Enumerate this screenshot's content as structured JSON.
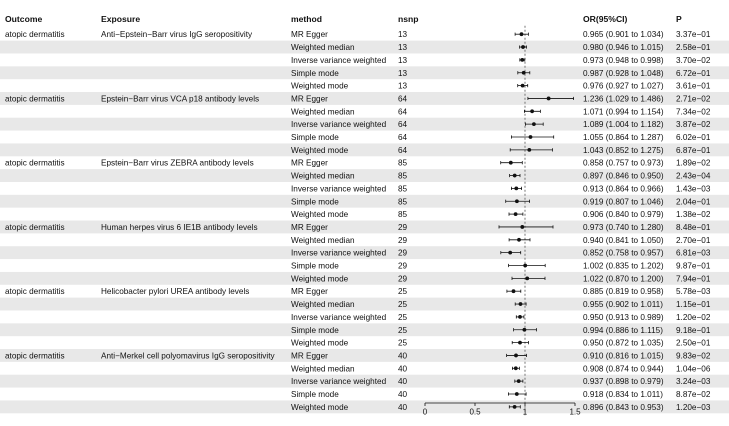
{
  "chart_data": {
    "type": "forest",
    "title": "",
    "columns": {
      "outcome": "Outcome",
      "exposure": "Exposure",
      "method": "method",
      "nsnp": "nsnp",
      "or": "OR(95%CI)",
      "p": "P"
    },
    "xaxis": {
      "ticks": [
        "0",
        "0.5",
        "1",
        "1.5"
      ],
      "tick_values": [
        0,
        0.5,
        1,
        1.5
      ],
      "range": [
        0,
        1.5
      ],
      "reference_line": 1,
      "label": ""
    },
    "colors": {
      "shade": "#e8e8e8",
      "point": "#111111",
      "ci": "#111111",
      "ref": "#555555"
    },
    "groups": [
      {
        "outcome": "atopic dermatitis",
        "exposure": "Anti−Epstein−Barr virus IgG seropositivity",
        "rows": [
          {
            "method": "MR Egger",
            "nsnp": "13",
            "or": 0.965,
            "lo": 0.901,
            "hi": 1.034,
            "or_text": "0.965 (0.901 to 1.034)",
            "p": "3.37e−01"
          },
          {
            "method": "Weighted median",
            "nsnp": "13",
            "or": 0.98,
            "lo": 0.946,
            "hi": 1.015,
            "or_text": "0.980 (0.946 to 1.015)",
            "p": "2.58e−01"
          },
          {
            "method": "Inverse variance weighted",
            "nsnp": "13",
            "or": 0.973,
            "lo": 0.948,
            "hi": 0.998,
            "or_text": "0.973 (0.948 to 0.998)",
            "p": "3.70e−02"
          },
          {
            "method": "Simple mode",
            "nsnp": "13",
            "or": 0.987,
            "lo": 0.928,
            "hi": 1.048,
            "or_text": "0.987 (0.928 to 1.048)",
            "p": "6.72e−01"
          },
          {
            "method": "Weighted mode",
            "nsnp": "13",
            "or": 0.976,
            "lo": 0.927,
            "hi": 1.027,
            "or_text": "0.976 (0.927 to 1.027)",
            "p": "3.61e−01"
          }
        ]
      },
      {
        "outcome": "atopic dermatitis",
        "exposure": "Epstein−Barr virus VCA p18 antibody levels",
        "rows": [
          {
            "method": "MR Egger",
            "nsnp": "64",
            "or": 1.236,
            "lo": 1.029,
            "hi": 1.486,
            "or_text": "1.236 (1.029 to 1.486)",
            "p": "2.71e−02"
          },
          {
            "method": "Weighted median",
            "nsnp": "64",
            "or": 1.071,
            "lo": 0.994,
            "hi": 1.154,
            "or_text": "1.071 (0.994 to 1.154)",
            "p": "7.34e−02"
          },
          {
            "method": "Inverse variance weighted",
            "nsnp": "64",
            "or": 1.089,
            "lo": 1.004,
            "hi": 1.182,
            "or_text": "1.089 (1.004 to 1.182)",
            "p": "3.87e−02"
          },
          {
            "method": "Simple mode",
            "nsnp": "64",
            "or": 1.055,
            "lo": 0.864,
            "hi": 1.287,
            "or_text": "1.055 (0.864 to 1.287)",
            "p": "6.02e−01"
          },
          {
            "method": "Weighted mode",
            "nsnp": "64",
            "or": 1.043,
            "lo": 0.852,
            "hi": 1.275,
            "or_text": "1.043 (0.852 to 1.275)",
            "p": "6.87e−01"
          }
        ]
      },
      {
        "outcome": "atopic dermatitis",
        "exposure": "Epstein−Barr virus ZEBRA antibody levels",
        "rows": [
          {
            "method": "MR Egger",
            "nsnp": "85",
            "or": 0.858,
            "lo": 0.757,
            "hi": 0.973,
            "or_text": "0.858 (0.757 to 0.973)",
            "p": "1.89e−02"
          },
          {
            "method": "Weighted median",
            "nsnp": "85",
            "or": 0.897,
            "lo": 0.846,
            "hi": 0.95,
            "or_text": "0.897 (0.846 to 0.950)",
            "p": "2.43e−04"
          },
          {
            "method": "Inverse variance weighted",
            "nsnp": "85",
            "or": 0.913,
            "lo": 0.864,
            "hi": 0.966,
            "or_text": "0.913 (0.864 to 0.966)",
            "p": "1.43e−03"
          },
          {
            "method": "Simple mode",
            "nsnp": "85",
            "or": 0.919,
            "lo": 0.807,
            "hi": 1.046,
            "or_text": "0.919 (0.807 to 1.046)",
            "p": "2.04e−01"
          },
          {
            "method": "Weighted mode",
            "nsnp": "85",
            "or": 0.906,
            "lo": 0.84,
            "hi": 0.979,
            "or_text": "0.906 (0.840 to 0.979)",
            "p": "1.38e−02"
          }
        ]
      },
      {
        "outcome": "atopic dermatitis",
        "exposure": "Human herpes virus 6 IE1B antibody levels",
        "rows": [
          {
            "method": "MR Egger",
            "nsnp": "29",
            "or": 0.973,
            "lo": 0.74,
            "hi": 1.28,
            "or_text": "0.973 (0.740 to 1.280)",
            "p": "8.48e−01"
          },
          {
            "method": "Weighted median",
            "nsnp": "29",
            "or": 0.94,
            "lo": 0.841,
            "hi": 1.05,
            "or_text": "0.940 (0.841 to 1.050)",
            "p": "2.70e−01"
          },
          {
            "method": "Inverse variance weighted",
            "nsnp": "29",
            "or": 0.852,
            "lo": 0.758,
            "hi": 0.957,
            "or_text": "0.852 (0.758 to 0.957)",
            "p": "6.81e−03"
          },
          {
            "method": "Simple mode",
            "nsnp": "29",
            "or": 1.002,
            "lo": 0.835,
            "hi": 1.202,
            "or_text": "1.002 (0.835 to 1.202)",
            "p": "9.87e−01"
          },
          {
            "method": "Weighted mode",
            "nsnp": "29",
            "or": 1.022,
            "lo": 0.87,
            "hi": 1.2,
            "or_text": "1.022 (0.870 to 1.200)",
            "p": "7.94e−01"
          }
        ]
      },
      {
        "outcome": "atopic dermatitis",
        "exposure": "Helicobacter pylori UREA antibody levels",
        "rows": [
          {
            "method": "MR Egger",
            "nsnp": "25",
            "or": 0.885,
            "lo": 0.819,
            "hi": 0.958,
            "or_text": "0.885 (0.819 to 0.958)",
            "p": "5.78e−03"
          },
          {
            "method": "Weighted median",
            "nsnp": "25",
            "or": 0.955,
            "lo": 0.902,
            "hi": 1.011,
            "or_text": "0.955 (0.902 to 1.011)",
            "p": "1.15e−01"
          },
          {
            "method": "Inverse variance weighted",
            "nsnp": "25",
            "or": 0.95,
            "lo": 0.913,
            "hi": 0.989,
            "or_text": "0.950 (0.913 to 0.989)",
            "p": "1.20e−02"
          },
          {
            "method": "Simple mode",
            "nsnp": "25",
            "or": 0.994,
            "lo": 0.886,
            "hi": 1.115,
            "or_text": "0.994 (0.886 to 1.115)",
            "p": "9.18e−01"
          },
          {
            "method": "Weighted mode",
            "nsnp": "25",
            "or": 0.95,
            "lo": 0.872,
            "hi": 1.035,
            "or_text": "0.950 (0.872 to 1.035)",
            "p": "2.50e−01"
          }
        ]
      },
      {
        "outcome": "atopic dermatitis",
        "exposure": "Anti−Merkel cell polyomavirus IgG seropositivity",
        "rows": [
          {
            "method": "MR Egger",
            "nsnp": "40",
            "or": 0.91,
            "lo": 0.816,
            "hi": 1.015,
            "or_text": "0.910 (0.816 to 1.015)",
            "p": "9.83e−02"
          },
          {
            "method": "Weighted median",
            "nsnp": "40",
            "or": 0.908,
            "lo": 0.874,
            "hi": 0.944,
            "or_text": "0.908 (0.874 to 0.944)",
            "p": "1.04e−06"
          },
          {
            "method": "Inverse variance weighted",
            "nsnp": "40",
            "or": 0.937,
            "lo": 0.898,
            "hi": 0.979,
            "or_text": "0.937 (0.898 to 0.979)",
            "p": "3.24e−03"
          },
          {
            "method": "Simple mode",
            "nsnp": "40",
            "or": 0.918,
            "lo": 0.834,
            "hi": 1.011,
            "or_text": "0.918 (0.834 to 1.011)",
            "p": "8.87e−02"
          },
          {
            "method": "Weighted mode",
            "nsnp": "40",
            "or": 0.896,
            "lo": 0.843,
            "hi": 0.953,
            "or_text": "0.896 (0.843 to 0.953)",
            "p": "1.20e−03"
          }
        ]
      }
    ]
  }
}
